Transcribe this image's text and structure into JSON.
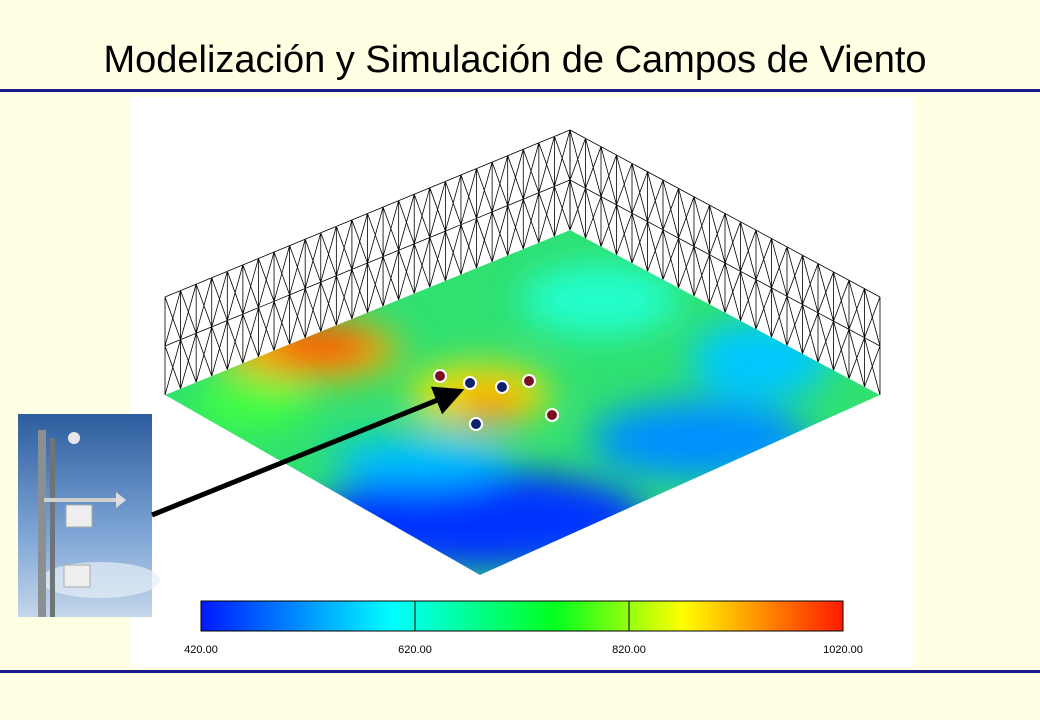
{
  "title": "Modelización y Simulación de Campos de Viento",
  "colorbar": {
    "range": [
      420,
      1020
    ],
    "ticks": [
      {
        "value": 420,
        "label": "420.00"
      },
      {
        "value": 620,
        "label": "620.00"
      },
      {
        "value": 820,
        "label": "820.00"
      },
      {
        "value": 1020,
        "label": "1020.00"
      }
    ]
  }
}
